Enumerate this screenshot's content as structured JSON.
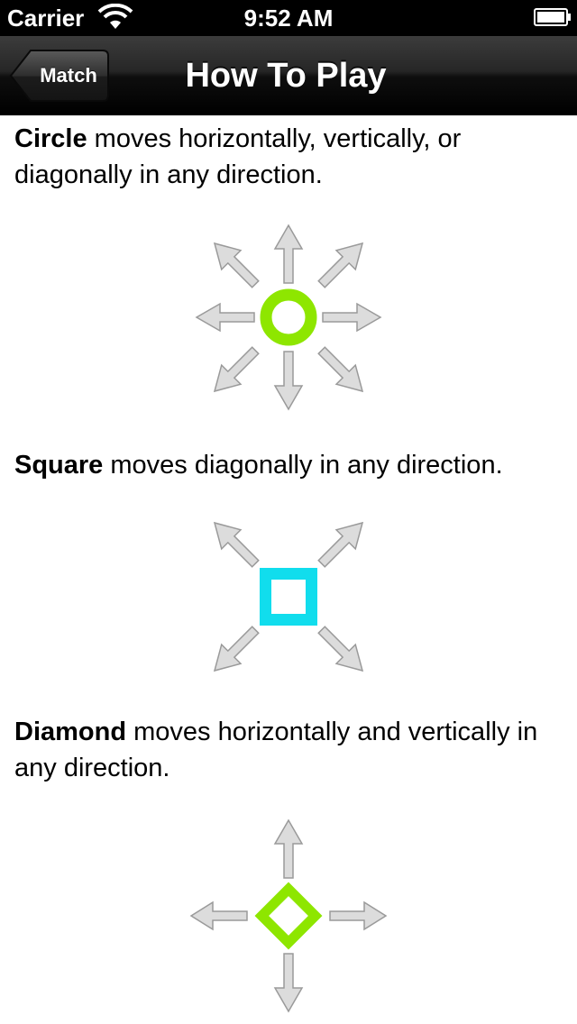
{
  "status_bar": {
    "carrier": "Carrier",
    "time": "9:52 AM",
    "wifi_icon": "wifi-icon",
    "battery_icon": "battery-icon"
  },
  "navbar": {
    "back_label": "Match",
    "title": "How To Play"
  },
  "rules": [
    {
      "piece": "Circle",
      "text": " moves horizontally, vertically, or diagonally in any direction.",
      "color": "#8ee600",
      "icon": "circle-piece-icon",
      "arrows": [
        "up",
        "up-right",
        "right",
        "down-right",
        "down",
        "down-left",
        "left",
        "up-left"
      ]
    },
    {
      "piece": "Square",
      "text": " moves diagonally in any direction.",
      "color": "#11dded",
      "icon": "square-piece-icon",
      "arrows": [
        "up-right",
        "down-right",
        "down-left",
        "up-left"
      ]
    },
    {
      "piece": "Diamond",
      "text": " moves horizontally and vertically in any direction.",
      "color": "#8ee600",
      "icon": "diamond-piece-icon",
      "arrows": [
        "up",
        "right",
        "down",
        "left"
      ]
    }
  ],
  "colors": {
    "arrow_fill": "#dcdcdc",
    "arrow_stroke": "#9a9a9a"
  }
}
